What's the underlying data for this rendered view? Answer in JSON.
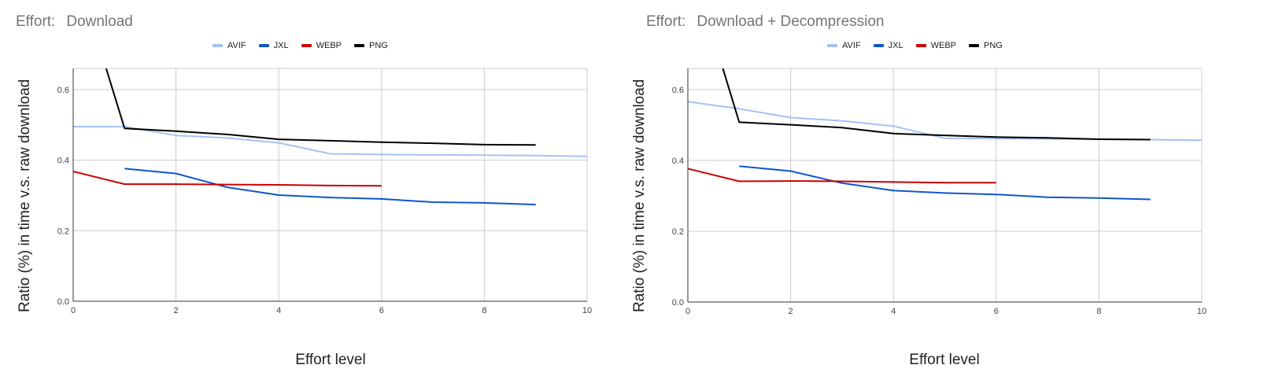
{
  "chart_data": [
    {
      "type": "line",
      "title_label": "Effort:",
      "title": "Download",
      "xlabel": "Effort level",
      "ylabel": "Ratio (%) in time  v.s.  raw download",
      "xlim": [
        0,
        10
      ],
      "ylim": [
        0,
        0.66
      ],
      "xticks": [
        "0",
        "2",
        "4",
        "6",
        "8",
        "10"
      ],
      "yticks": [
        "0.0",
        "0.2",
        "0.4",
        "0.6"
      ],
      "grid": true,
      "legend_position": "top",
      "series": [
        {
          "name": "AVIF",
          "color": "#a4c2f4",
          "x": [
            0,
            1,
            2,
            3,
            4,
            5,
            6,
            7,
            8,
            9,
            10
          ],
          "y": [
            0.495,
            0.495,
            0.47,
            0.463,
            0.449,
            0.418,
            0.416,
            0.415,
            0.414,
            0.413,
            0.411
          ]
        },
        {
          "name": "JXL",
          "color": "#1155cc",
          "x": [
            1,
            2,
            3,
            4,
            5,
            6,
            7,
            8,
            9
          ],
          "y": [
            0.376,
            0.362,
            0.323,
            0.301,
            0.294,
            0.29,
            0.281,
            0.279,
            0.274
          ]
        },
        {
          "name": "WEBP",
          "color": "#cc0000",
          "x": [
            0,
            1,
            2,
            3,
            4,
            5,
            6
          ],
          "y": [
            0.368,
            0.332,
            0.332,
            0.331,
            0.33,
            0.328,
            0.327
          ]
        },
        {
          "name": "PNG",
          "color": "#000000",
          "x": [
            0.62,
            1,
            2,
            3,
            4,
            5,
            6,
            7,
            8,
            9
          ],
          "y": [
            0.67,
            0.49,
            0.482,
            0.473,
            0.459,
            0.455,
            0.451,
            0.448,
            0.444,
            0.443
          ]
        }
      ]
    },
    {
      "type": "line",
      "title_label": "Effort:",
      "title": "Download + Decompression",
      "xlabel": "Effort level",
      "ylabel": "Ratio (%) in time  v.s.  raw download",
      "xlim": [
        0,
        10
      ],
      "ylim": [
        0,
        0.66
      ],
      "xticks": [
        "0",
        "2",
        "4",
        "6",
        "8",
        "10"
      ],
      "yticks": [
        "0.0",
        "0.2",
        "0.4",
        "0.6"
      ],
      "grid": true,
      "legend_position": "top",
      "series": [
        {
          "name": "AVIF",
          "color": "#a4c2f4",
          "x": [
            0,
            1,
            2,
            3,
            4,
            5,
            6,
            7,
            8,
            9,
            10
          ],
          "y": [
            0.566,
            0.546,
            0.521,
            0.512,
            0.497,
            0.463,
            0.462,
            0.461,
            0.46,
            0.459,
            0.457
          ]
        },
        {
          "name": "JXL",
          "color": "#1155cc",
          "x": [
            1,
            2,
            3,
            4,
            5,
            6,
            7,
            8,
            9
          ],
          "y": [
            0.384,
            0.37,
            0.336,
            0.315,
            0.308,
            0.304,
            0.296,
            0.294,
            0.29
          ]
        },
        {
          "name": "WEBP",
          "color": "#cc0000",
          "x": [
            0,
            1,
            2,
            3,
            4,
            5,
            6
          ],
          "y": [
            0.377,
            0.341,
            0.342,
            0.341,
            0.339,
            0.337,
            0.337
          ]
        },
        {
          "name": "PNG",
          "color": "#000000",
          "x": [
            0.66,
            1,
            2,
            3,
            4,
            5,
            6,
            7,
            8,
            9
          ],
          "y": [
            0.67,
            0.508,
            0.501,
            0.493,
            0.476,
            0.471,
            0.466,
            0.464,
            0.46,
            0.459
          ]
        }
      ]
    }
  ]
}
